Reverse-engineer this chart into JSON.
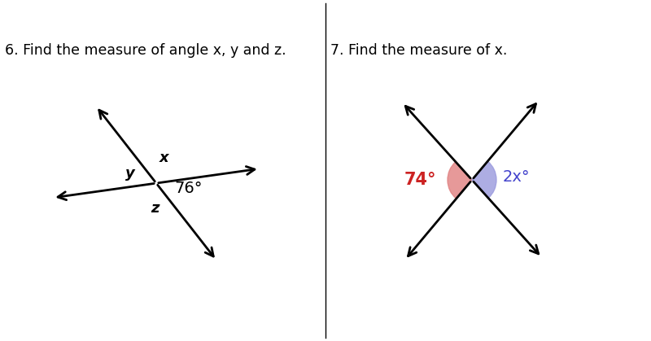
{
  "title6": "6. Find the measure of angle x, y and z.",
  "title7": "7. Find the measure of x.",
  "bg_color": "#ffffff",
  "line_color": "#000000",
  "line_width": 2.0,
  "label_76": "76°",
  "label_x6": "x",
  "label_y6": "y",
  "label_z6": "z",
  "label_74": "74°",
  "label_2x": "2x°",
  "color_74": "#cc2222",
  "color_2x": "#4444cc",
  "wedge_color_74": "#e08080",
  "wedge_color_2x": "#9999dd",
  "title_fontsize": 12.5,
  "label_fontsize": 13
}
